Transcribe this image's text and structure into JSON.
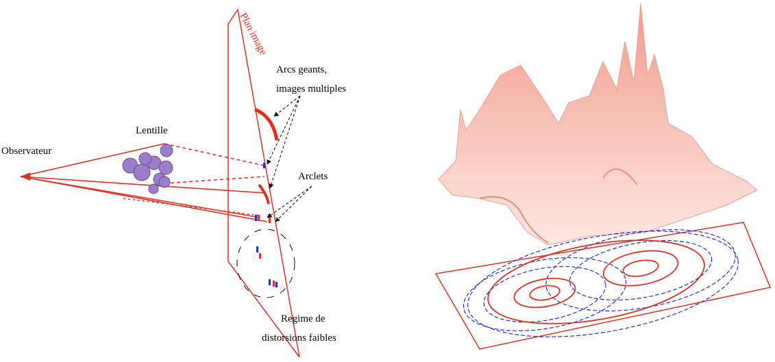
{
  "diagram": {
    "plane_label": "Plan image",
    "observer": "Observateur",
    "lens": "Lentille",
    "giant_arcs": [
      "Arcs geants,",
      "images multiples"
    ],
    "arclets": "Arclets",
    "weak_regime": [
      "Regime de",
      "distorsions faibles"
    ]
  }
}
